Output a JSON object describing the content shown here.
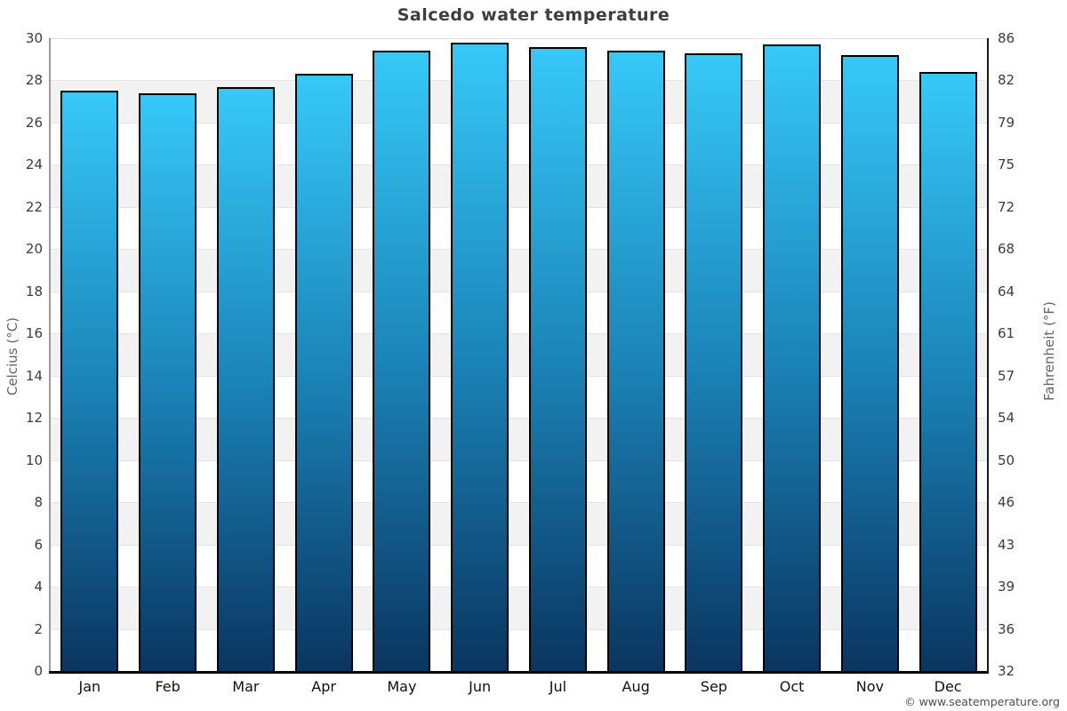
{
  "title": "Salcedo water temperature",
  "chart_data": {
    "type": "bar",
    "title": "Salcedo water temperature",
    "categories": [
      "Jan",
      "Feb",
      "Mar",
      "Apr",
      "May",
      "Jun",
      "Jul",
      "Aug",
      "Sep",
      "Oct",
      "Nov",
      "Dec"
    ],
    "values": [
      27.5,
      27.4,
      27.7,
      28.3,
      29.4,
      29.8,
      29.6,
      29.4,
      29.3,
      29.7,
      29.2,
      28.4
    ],
    "unit": "°C",
    "ylabel_left": "Celcius (°C)",
    "ylabel_right": "Fahrenheit (°F)",
    "ylim_celsius": [
      0,
      30
    ],
    "left_ticks": [
      0,
      2,
      4,
      6,
      8,
      10,
      12,
      14,
      16,
      18,
      20,
      22,
      24,
      26,
      28,
      30
    ],
    "right_ticks": [
      "32",
      "36",
      "39",
      "43",
      "46",
      "50",
      "54",
      "57",
      "61",
      "64",
      "68",
      "72",
      "75",
      "79",
      "82",
      "86"
    ],
    "grid": "alternating horizontal bands every 2°C, white and light gray, gridlines on",
    "legend": "none",
    "colors": {
      "bar_gradient_top": "#36c9f8",
      "bar_gradient_mid": "#1b84b8",
      "bar_gradient_bottom": "#0a3560",
      "bar_border": "#000000",
      "band_gray": "#f2f2f2",
      "band_white": "#ffffff",
      "x_axis_line": "#000000",
      "left_axis_line": "#9a9a9a",
      "title_color": "#3e3e3e"
    }
  },
  "footer": {
    "copyright": "© www.seatemperature.org"
  }
}
